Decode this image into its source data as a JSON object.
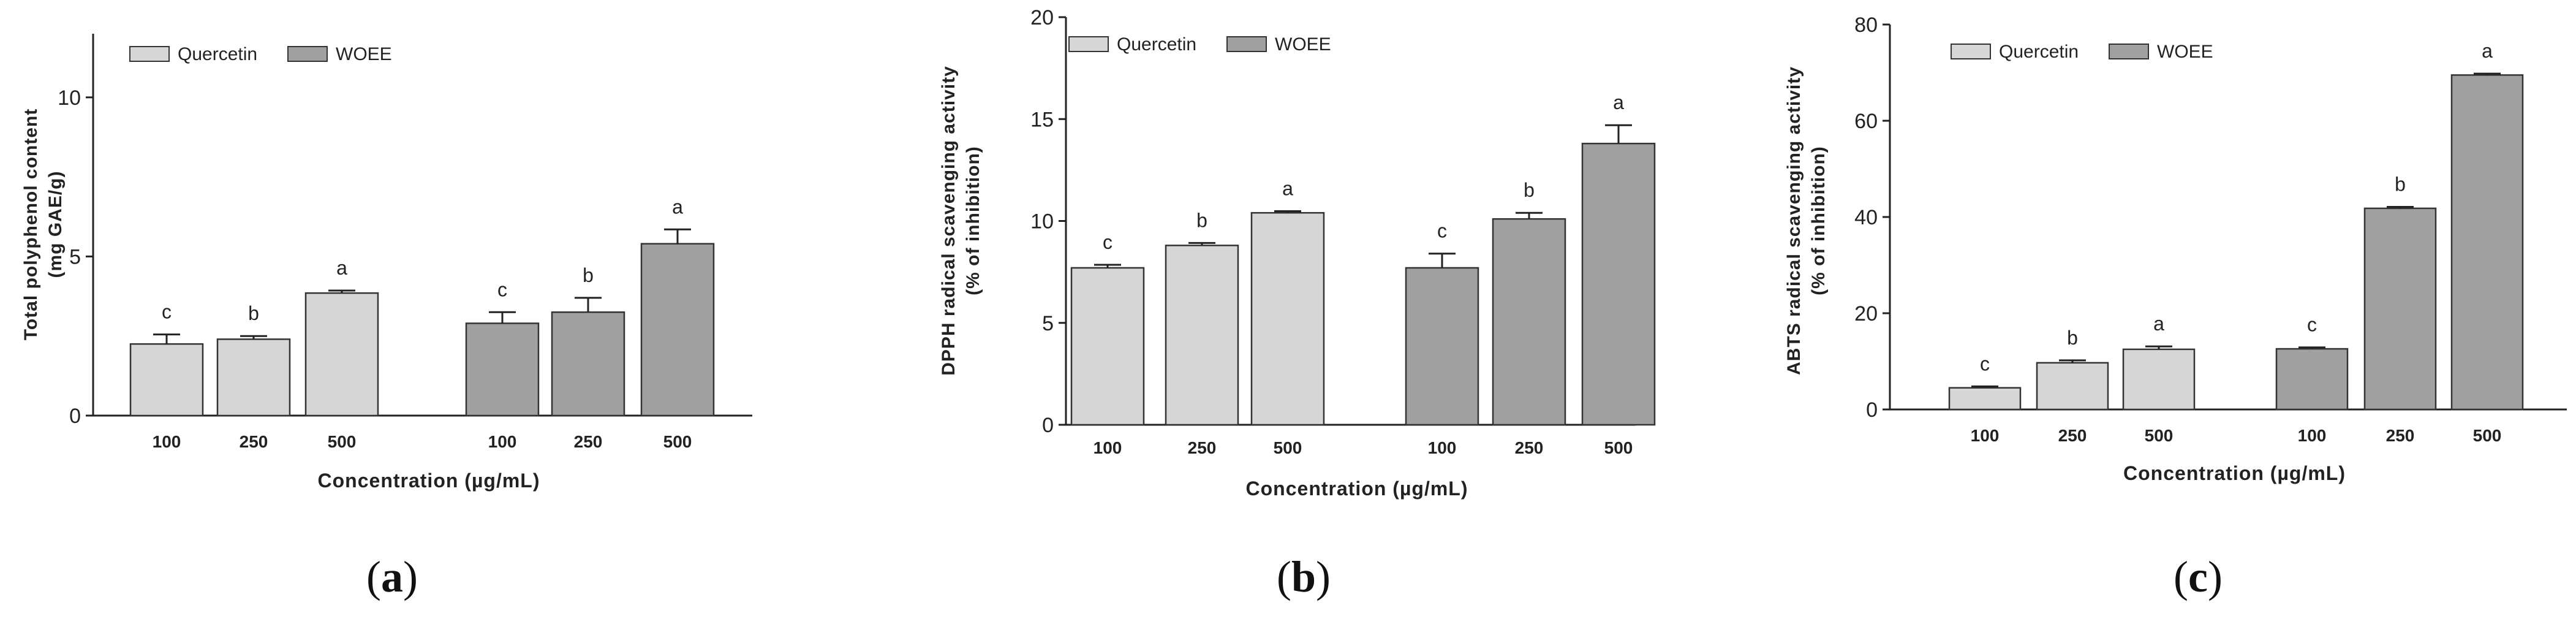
{
  "chart_data": [
    {
      "type": "bar",
      "panel": "a",
      "ylabel": [
        "Total polyphenol content",
        "(mg GAE/g)"
      ],
      "xlabel": "Concentration (µg/mL)",
      "ylim": [
        0,
        12
      ],
      "yticks": [
        0,
        5,
        10
      ],
      "categories": [
        "100",
        "250",
        "500"
      ],
      "legend": [
        "Quercetin",
        "WOEE"
      ],
      "series": [
        {
          "name": "Quercetin",
          "color": "#d6d6d6",
          "values": [
            2.25,
            2.4,
            3.85
          ],
          "errors": [
            0.3,
            0.1,
            0.08
          ],
          "letters": [
            "c",
            "b",
            "a"
          ]
        },
        {
          "name": "WOEE",
          "color": "#a0a0a0",
          "values": [
            2.9,
            3.25,
            5.4
          ],
          "errors": [
            0.35,
            0.45,
            0.45
          ],
          "letters": [
            "c",
            "b",
            "a"
          ]
        }
      ]
    },
    {
      "type": "bar",
      "panel": "b",
      "ylabel": [
        "DPPH radical scavenging activity",
        "(% of inhibition)"
      ],
      "xlabel": "Concentration (µg/mL)",
      "ylim": [
        0,
        20
      ],
      "yticks": [
        0,
        5,
        10,
        15,
        20
      ],
      "categories": [
        "100",
        "250",
        "500"
      ],
      "legend": [
        "Quercetin",
        "WOEE"
      ],
      "series": [
        {
          "name": "Quercetin",
          "color": "#d6d6d6",
          "values": [
            7.7,
            8.8,
            10.4
          ],
          "errors": [
            0.15,
            0.12,
            0.08
          ],
          "letters": [
            "c",
            "b",
            "a"
          ]
        },
        {
          "name": "WOEE",
          "color": "#a0a0a0",
          "values": [
            7.7,
            10.1,
            13.8
          ],
          "errors": [
            0.7,
            0.3,
            0.9
          ],
          "letters": [
            "c",
            "b",
            "a"
          ]
        }
      ]
    },
    {
      "type": "bar",
      "panel": "c",
      "ylabel": [
        "ABTS radical scavenging activity",
        "(% of inhibition)"
      ],
      "xlabel": "Concentration (µg/mL)",
      "ylim": [
        0,
        80
      ],
      "yticks": [
        0,
        20,
        40,
        60,
        80
      ],
      "categories": [
        "100",
        "250",
        "500"
      ],
      "legend": [
        "Quercetin",
        "WOEE"
      ],
      "series": [
        {
          "name": "Quercetin",
          "color": "#d6d6d6",
          "values": [
            4.5,
            9.7,
            12.5
          ],
          "errors": [
            0.3,
            0.5,
            0.6
          ],
          "letters": [
            "c",
            "b",
            "a"
          ]
        },
        {
          "name": "WOEE",
          "color": "#a0a0a0",
          "values": [
            12.6,
            41.8,
            69.5
          ],
          "errors": [
            0.3,
            0.3,
            0.3
          ],
          "letters": [
            "c",
            "b",
            "a"
          ]
        }
      ]
    }
  ],
  "panel_labels": [
    {
      "open": "(",
      "letter": "a",
      "close": ")"
    },
    {
      "open": "(",
      "letter": "b",
      "close": ")"
    },
    {
      "open": "(",
      "letter": "c",
      "close": ")"
    }
  ]
}
